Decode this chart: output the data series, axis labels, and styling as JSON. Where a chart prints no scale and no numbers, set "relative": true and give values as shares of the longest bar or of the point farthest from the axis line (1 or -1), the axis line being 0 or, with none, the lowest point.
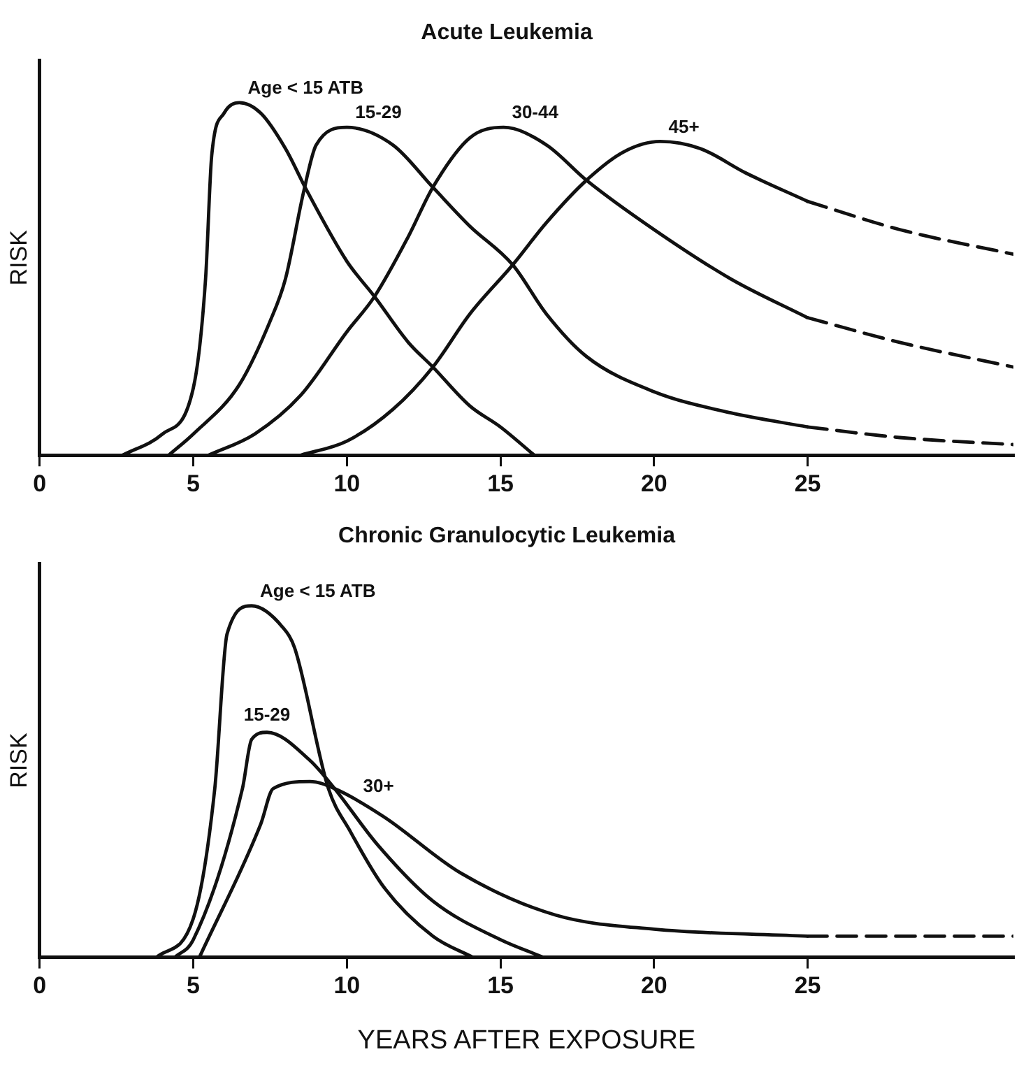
{
  "chart_data": [
    {
      "type": "line",
      "title": "Acute Leukemia",
      "ylabel": "RISK",
      "relative": true,
      "xlim": [
        0,
        31.7
      ],
      "xticks": [
        0,
        5,
        10,
        15,
        20,
        25
      ],
      "grid": false,
      "legend": false,
      "marker": "none",
      "series": [
        {
          "name": "Age < 15 ATB",
          "color": "#111111",
          "line_style": "solid",
          "x": [
            2.7,
            4,
            5,
            5.4,
            5.6,
            6,
            6.5,
            7.2,
            8,
            8.7,
            10,
            10.9,
            12,
            12.8,
            14,
            15,
            16.1
          ],
          "values": [
            0,
            0.06,
            0.19,
            0.5,
            0.85,
            0.97,
            1,
            0.97,
            0.87,
            0.75,
            0.55,
            0.45,
            0.32,
            0.25,
            0.14,
            0.08,
            0
          ]
        },
        {
          "name": "15-29",
          "color": "#111111",
          "line_style": "solid",
          "x": [
            4.2,
            5,
            6.5,
            7.5,
            8,
            8.6,
            9,
            10,
            11.5,
            12.8,
            14,
            15.4,
            16.5,
            17.8,
            20,
            22.5,
            25
          ],
          "values": [
            0,
            0.06,
            0.2,
            0.38,
            0.5,
            0.75,
            0.88,
            0.93,
            0.88,
            0.76,
            0.65,
            0.54,
            0.4,
            0.28,
            0.18,
            0.12,
            0.08
          ]
        },
        {
          "color": "#111111",
          "line_style": "dashed",
          "x": [
            25,
            28,
            31.7
          ],
          "values": [
            0.08,
            0.05,
            0.03
          ]
        },
        {
          "name": "30-44",
          "color": "#111111",
          "line_style": "solid",
          "x": [
            5.5,
            7,
            8.5,
            10,
            10.9,
            12,
            12.8,
            14,
            15.1,
            16.5,
            17.8,
            20,
            22.5,
            25
          ],
          "values": [
            0,
            0.06,
            0.17,
            0.35,
            0.45,
            0.62,
            0.76,
            0.9,
            0.93,
            0.88,
            0.78,
            0.64,
            0.5,
            0.39
          ]
        },
        {
          "color": "#111111",
          "line_style": "dashed",
          "x": [
            25,
            28,
            31.7
          ],
          "values": [
            0.39,
            0.32,
            0.25
          ]
        },
        {
          "name": "45+",
          "color": "#111111",
          "line_style": "solid",
          "x": [
            8.5,
            10,
            11.5,
            12.8,
            14,
            15.4,
            16.5,
            17.8,
            19,
            20.2,
            21.5,
            23,
            25
          ],
          "values": [
            0,
            0.04,
            0.13,
            0.25,
            0.4,
            0.54,
            0.66,
            0.78,
            0.86,
            0.89,
            0.87,
            0.8,
            0.72
          ]
        },
        {
          "color": "#111111",
          "line_style": "dashed",
          "x": [
            25,
            28,
            31.7
          ],
          "values": [
            0.72,
            0.64,
            0.57
          ]
        }
      ]
    },
    {
      "type": "line",
      "title": "Chronic Granulocytic Leukemia",
      "ylabel": "RISK",
      "xlabel": "YEARS AFTER EXPOSURE",
      "relative": true,
      "xlim": [
        0,
        31.7
      ],
      "xticks": [
        0,
        5,
        10,
        15,
        20,
        25
      ],
      "grid": false,
      "legend": false,
      "marker": "none",
      "series": [
        {
          "name": "Age < 15 ATB",
          "color": "#111111",
          "line_style": "solid",
          "x": [
            3.8,
            5,
            5.7,
            6.1,
            6.9,
            7.9,
            8.3,
            9.4,
            10.1,
            11.2,
            12.8,
            14.1
          ],
          "values": [
            0,
            0.11,
            0.48,
            0.92,
            1,
            0.94,
            0.88,
            0.48,
            0.36,
            0.2,
            0.06,
            0
          ]
        },
        {
          "name": "15-29",
          "color": "#111111",
          "line_style": "solid",
          "x": [
            4.4,
            5,
            6.6,
            6.9,
            7.4,
            8.8,
            9.6,
            11,
            12.8,
            15,
            16.4
          ],
          "values": [
            0,
            0.05,
            0.48,
            0.62,
            0.64,
            0.56,
            0.48,
            0.32,
            0.16,
            0.05,
            0
          ]
        },
        {
          "name": "30+",
          "color": "#111111",
          "line_style": "solid",
          "x": [
            5.2,
            7.2,
            7.6,
            8.8,
            9.6,
            11.2,
            13.7,
            16.8,
            20,
            25
          ],
          "values": [
            0,
            0.38,
            0.48,
            0.5,
            0.48,
            0.4,
            0.24,
            0.12,
            0.08,
            0.06
          ]
        },
        {
          "color": "#111111",
          "line_style": "dashed",
          "x": [
            25,
            28,
            31.7
          ],
          "values": [
            0.06,
            0.06,
            0.06
          ]
        }
      ]
    }
  ]
}
